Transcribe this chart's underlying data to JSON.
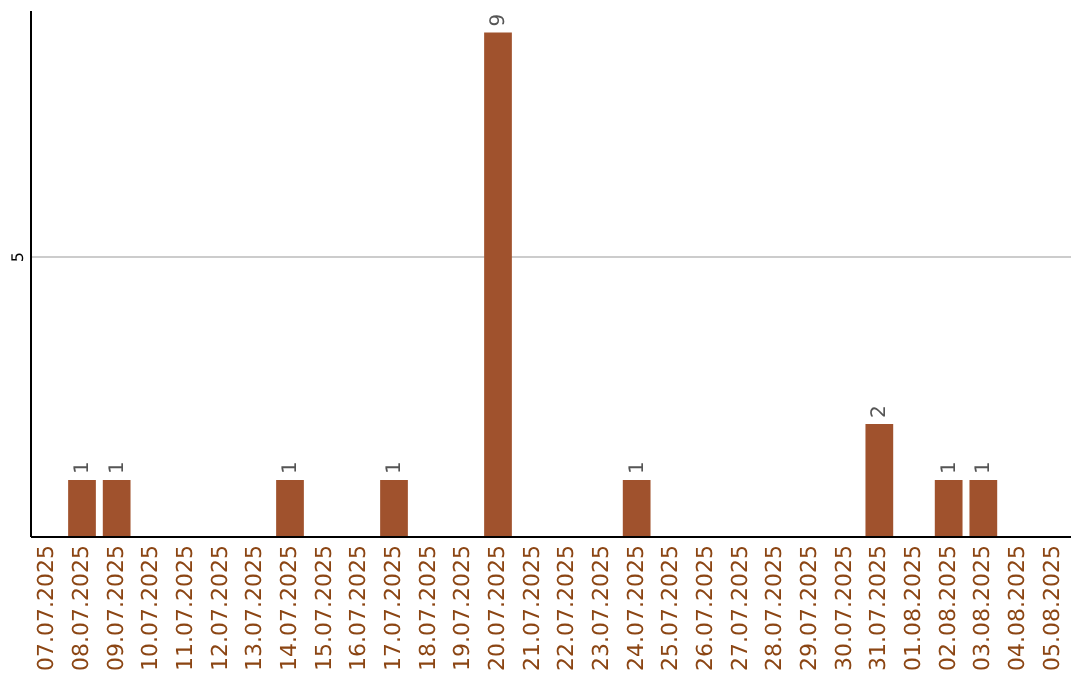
{
  "chart_data": {
    "type": "bar",
    "categories": [
      "07.07.2025",
      "08.07.2025",
      "09.07.2025",
      "10.07.2025",
      "11.07.2025",
      "12.07.2025",
      "13.07.2025",
      "14.07.2025",
      "15.07.2025",
      "16.07.2025",
      "17.07.2025",
      "18.07.2025",
      "19.07.2025",
      "20.07.2025",
      "21.07.2025",
      "22.07.2025",
      "23.07.2025",
      "24.07.2025",
      "25.07.2025",
      "26.07.2025",
      "27.07.2025",
      "28.07.2025",
      "29.07.2025",
      "30.07.2025",
      "31.07.2025",
      "01.08.2025",
      "02.08.2025",
      "03.08.2025",
      "04.08.2025",
      "05.08.2025"
    ],
    "values": [
      0,
      1,
      1,
      0,
      0,
      0,
      0,
      1,
      0,
      0,
      1,
      0,
      0,
      9,
      0,
      0,
      0,
      1,
      0,
      0,
      0,
      0,
      0,
      0,
      2,
      0,
      1,
      1,
      0,
      0
    ],
    "value_labels": [
      null,
      "1",
      "1",
      null,
      null,
      null,
      null,
      "1",
      null,
      null,
      "1",
      null,
      null,
      "9",
      null,
      null,
      null,
      "1",
      null,
      null,
      null,
      null,
      null,
      null,
      "2",
      null,
      "1",
      "1",
      null,
      null
    ],
    "color": "#a0522d",
    "ylim": [
      0,
      9.4
    ],
    "yticks": [
      5
    ],
    "grid": "y"
  }
}
